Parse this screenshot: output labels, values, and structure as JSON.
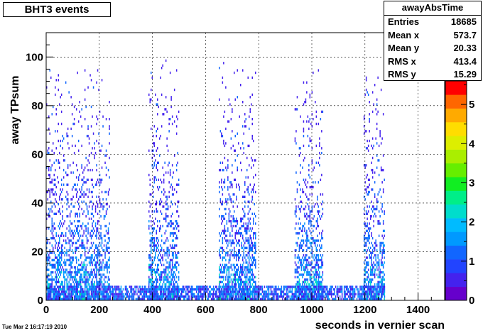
{
  "title": "BHT3 events",
  "timestamp": "Tue Mar  2 16:17:19 2010",
  "stats": {
    "name": "awayAbsTime",
    "rows": [
      {
        "label": "Entries",
        "value": "18685"
      },
      {
        "label": "Mean x",
        "value": "573.7"
      },
      {
        "label": "Mean y",
        "value": "20.33"
      },
      {
        "label": "RMS x",
        "value": "413.4"
      },
      {
        "label": "RMS y",
        "value": "15.29"
      }
    ]
  },
  "chart_data": {
    "type": "heatmap",
    "title": "BHT3 events",
    "xlabel": "seconds in vernier scan",
    "ylabel": "away TPsum",
    "xlim": [
      0,
      1500
    ],
    "ylim": [
      0,
      110
    ],
    "xticks": [
      "0",
      "200",
      "400",
      "600",
      "800",
      "1000",
      "1200",
      "1400"
    ],
    "yticks": [
      "0",
      "20",
      "40",
      "60",
      "80",
      "100"
    ],
    "zticks": [
      "0",
      "1",
      "2",
      "3",
      "4",
      "5"
    ],
    "zlim": [
      0,
      5.6
    ],
    "grid": true,
    "bands": [
      {
        "x": [
          0,
          240
        ],
        "ymax": 95
      },
      {
        "x": [
          385,
          500
        ],
        "ymax": 100
      },
      {
        "x": [
          650,
          790
        ],
        "ymax": 100
      },
      {
        "x": [
          935,
          1040
        ],
        "ymax": 95
      },
      {
        "x": [
          1195,
          1275
        ],
        "ymax": 95
      }
    ],
    "baseline": {
      "x": [
        0,
        1275
      ],
      "y": [
        0,
        6
      ]
    }
  },
  "colors": {
    "palette": [
      "#6600cc",
      "#4422ee",
      "#2244ff",
      "#1166ff",
      "#0099ff",
      "#00bbff",
      "#00ddcc",
      "#00ee88",
      "#11ee22",
      "#66ee00",
      "#aaee00",
      "#ddee00",
      "#ffdd00",
      "#ffaa00",
      "#ff6600",
      "#ff0000"
    ]
  }
}
